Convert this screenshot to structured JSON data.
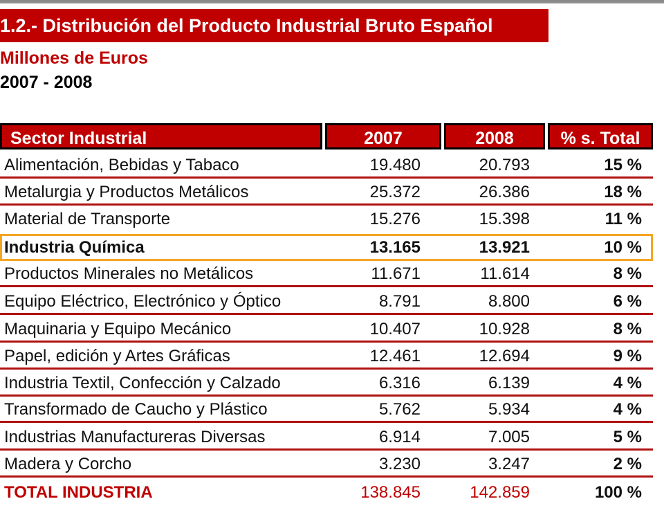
{
  "title": "1.2.- Distribución del Producto Industrial Bruto Español",
  "subtitle": "Millones de Euros",
  "period": "2007 - 2008",
  "table": {
    "headers": {
      "sector": "Sector Industrial",
      "y2007": "2007",
      "y2008": "2008",
      "pct": "% s. Total"
    },
    "rows": [
      {
        "sector": "Alimentación, Bebidas y Tabaco",
        "y2007": "19.480",
        "y2008": "20.793",
        "pct": "15 %"
      },
      {
        "sector": "Metalurgia y Productos Metálicos",
        "y2007": "25.372",
        "y2008": "26.386",
        "pct": "18 %"
      },
      {
        "sector": "Material de Transporte",
        "y2007": "15.276",
        "y2008": "15.398",
        "pct": "11 %"
      },
      {
        "sector": "Industria Química",
        "y2007": "13.165",
        "y2008": "13.921",
        "pct": "10 %"
      },
      {
        "sector": "Productos Minerales no Metálicos",
        "y2007": "11.671",
        "y2008": "11.614",
        "pct": "8 %"
      },
      {
        "sector": "Equipo Eléctrico, Electrónico y Óptico",
        "y2007": "8.791",
        "y2008": "8.800",
        "pct": "6 %"
      },
      {
        "sector": "Maquinaria y Equipo Mecánico",
        "y2007": "10.407",
        "y2008": "10.928",
        "pct": "8 %"
      },
      {
        "sector": "Papel, edición y Artes Gráficas",
        "y2007": "12.461",
        "y2008": "12.694",
        "pct": "9 %"
      },
      {
        "sector": "Industria Textil, Confección y Calzado",
        "y2007": "6.316",
        "y2008": "6.139",
        "pct": "4 %"
      },
      {
        "sector": "Transformado de Caucho y Plástico",
        "y2007": "5.762",
        "y2008": "5.934",
        "pct": "4 %"
      },
      {
        "sector": "Industrias Manufactureras Diversas",
        "y2007": "6.914",
        "y2008": "7.005",
        "pct": "5 %"
      },
      {
        "sector": "Madera y Corcho",
        "y2007": "3.230",
        "y2008": "3.247",
        "pct": "2 %"
      }
    ],
    "total": {
      "sector": "TOTAL INDUSTRIA",
      "y2007": "138.845",
      "y2008": "142.859",
      "pct": "100 %"
    }
  },
  "colors": {
    "accent": "#c00000",
    "highlight": "#f5a623"
  }
}
